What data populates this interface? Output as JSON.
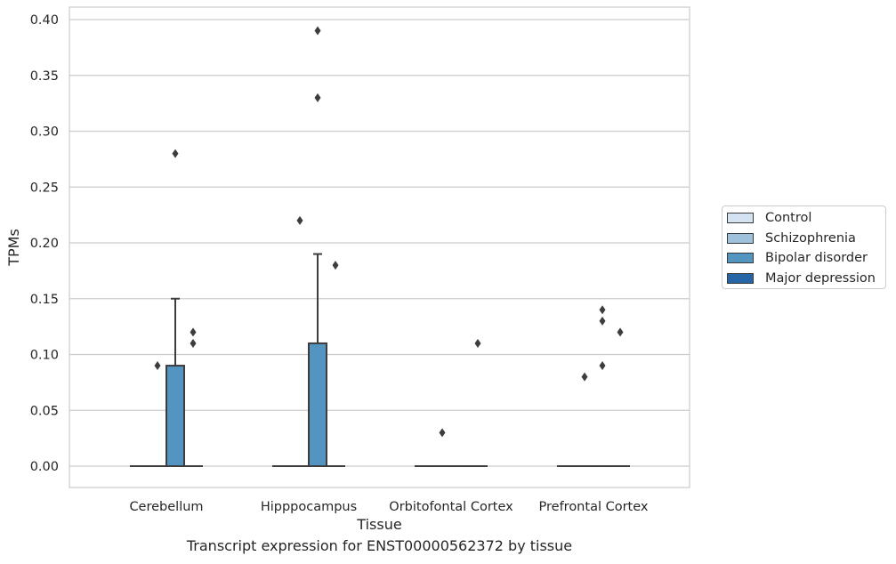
{
  "chart_data": {
    "type": "box",
    "title": "",
    "xlabel": "Tissue",
    "ylabel": "TPMs",
    "caption": "Transcript expression for ENST00000562372 by tissue",
    "ylim": [
      -0.02,
      0.41
    ],
    "yticks": [
      "0.00",
      "0.05",
      "0.10",
      "0.15",
      "0.20",
      "0.25",
      "0.30",
      "0.35",
      "0.40"
    ],
    "grid": true,
    "legend_position": "right",
    "categories": [
      "Cerebellum",
      "Hipppocampus",
      "Orbitofontal Cortex",
      "Prefrontal Cortex"
    ],
    "series": [
      {
        "name": "Control",
        "color": "#d4e3f1",
        "boxes": [
          {
            "q1": 0,
            "median": 0,
            "q3": 0,
            "whisker_low": 0,
            "whisker_high": 0,
            "outliers": []
          },
          {
            "q1": 0,
            "median": 0,
            "q3": 0,
            "whisker_low": 0,
            "whisker_high": 0,
            "outliers": []
          },
          {
            "q1": 0,
            "median": 0,
            "q3": 0,
            "whisker_low": 0,
            "whisker_high": 0,
            "outliers": []
          },
          {
            "q1": 0,
            "median": 0,
            "q3": 0,
            "whisker_low": 0,
            "whisker_high": 0,
            "outliers": []
          }
        ]
      },
      {
        "name": "Schizophrenia",
        "color": "#9dc3dc",
        "boxes": [
          {
            "q1": 0,
            "median": 0,
            "q3": 0,
            "whisker_low": 0,
            "whisker_high": 0,
            "outliers": [
              0.09
            ]
          },
          {
            "q1": 0,
            "median": 0,
            "q3": 0,
            "whisker_low": 0,
            "whisker_high": 0,
            "outliers": [
              0.22
            ]
          },
          {
            "q1": 0,
            "median": 0,
            "q3": 0,
            "whisker_low": 0,
            "whisker_high": 0,
            "outliers": [
              0.03
            ]
          },
          {
            "q1": 0,
            "median": 0,
            "q3": 0,
            "whisker_low": 0,
            "whisker_high": 0,
            "outliers": [
              0.08
            ]
          }
        ]
      },
      {
        "name": "Bipolar disorder",
        "color": "#5494c1",
        "boxes": [
          {
            "q1": 0,
            "median": 0,
            "q3": 0.09,
            "whisker_low": 0,
            "whisker_high": 0.15,
            "outliers": [
              0.28
            ]
          },
          {
            "q1": 0,
            "median": 0,
            "q3": 0.11,
            "whisker_low": 0,
            "whisker_high": 0.19,
            "outliers": [
              0.33,
              0.39
            ]
          },
          {
            "q1": 0,
            "median": 0,
            "q3": 0,
            "whisker_low": 0,
            "whisker_high": 0,
            "outliers": []
          },
          {
            "q1": 0,
            "median": 0,
            "q3": 0,
            "whisker_low": 0,
            "whisker_high": 0,
            "outliers": [
              0.09,
              0.13,
              0.14
            ]
          }
        ]
      },
      {
        "name": "Major depression",
        "color": "#2566a6",
        "boxes": [
          {
            "q1": 0,
            "median": 0,
            "q3": 0,
            "whisker_low": 0,
            "whisker_high": 0,
            "outliers": [
              0.11,
              0.12
            ]
          },
          {
            "q1": 0,
            "median": 0,
            "q3": 0,
            "whisker_low": 0,
            "whisker_high": 0,
            "outliers": [
              0.18
            ]
          },
          {
            "q1": 0,
            "median": 0,
            "q3": 0,
            "whisker_low": 0,
            "whisker_high": 0,
            "outliers": [
              0.11
            ]
          },
          {
            "q1": 0,
            "median": 0,
            "q3": 0,
            "whisker_low": 0,
            "whisker_high": 0,
            "outliers": [
              0.12
            ]
          }
        ]
      }
    ]
  }
}
